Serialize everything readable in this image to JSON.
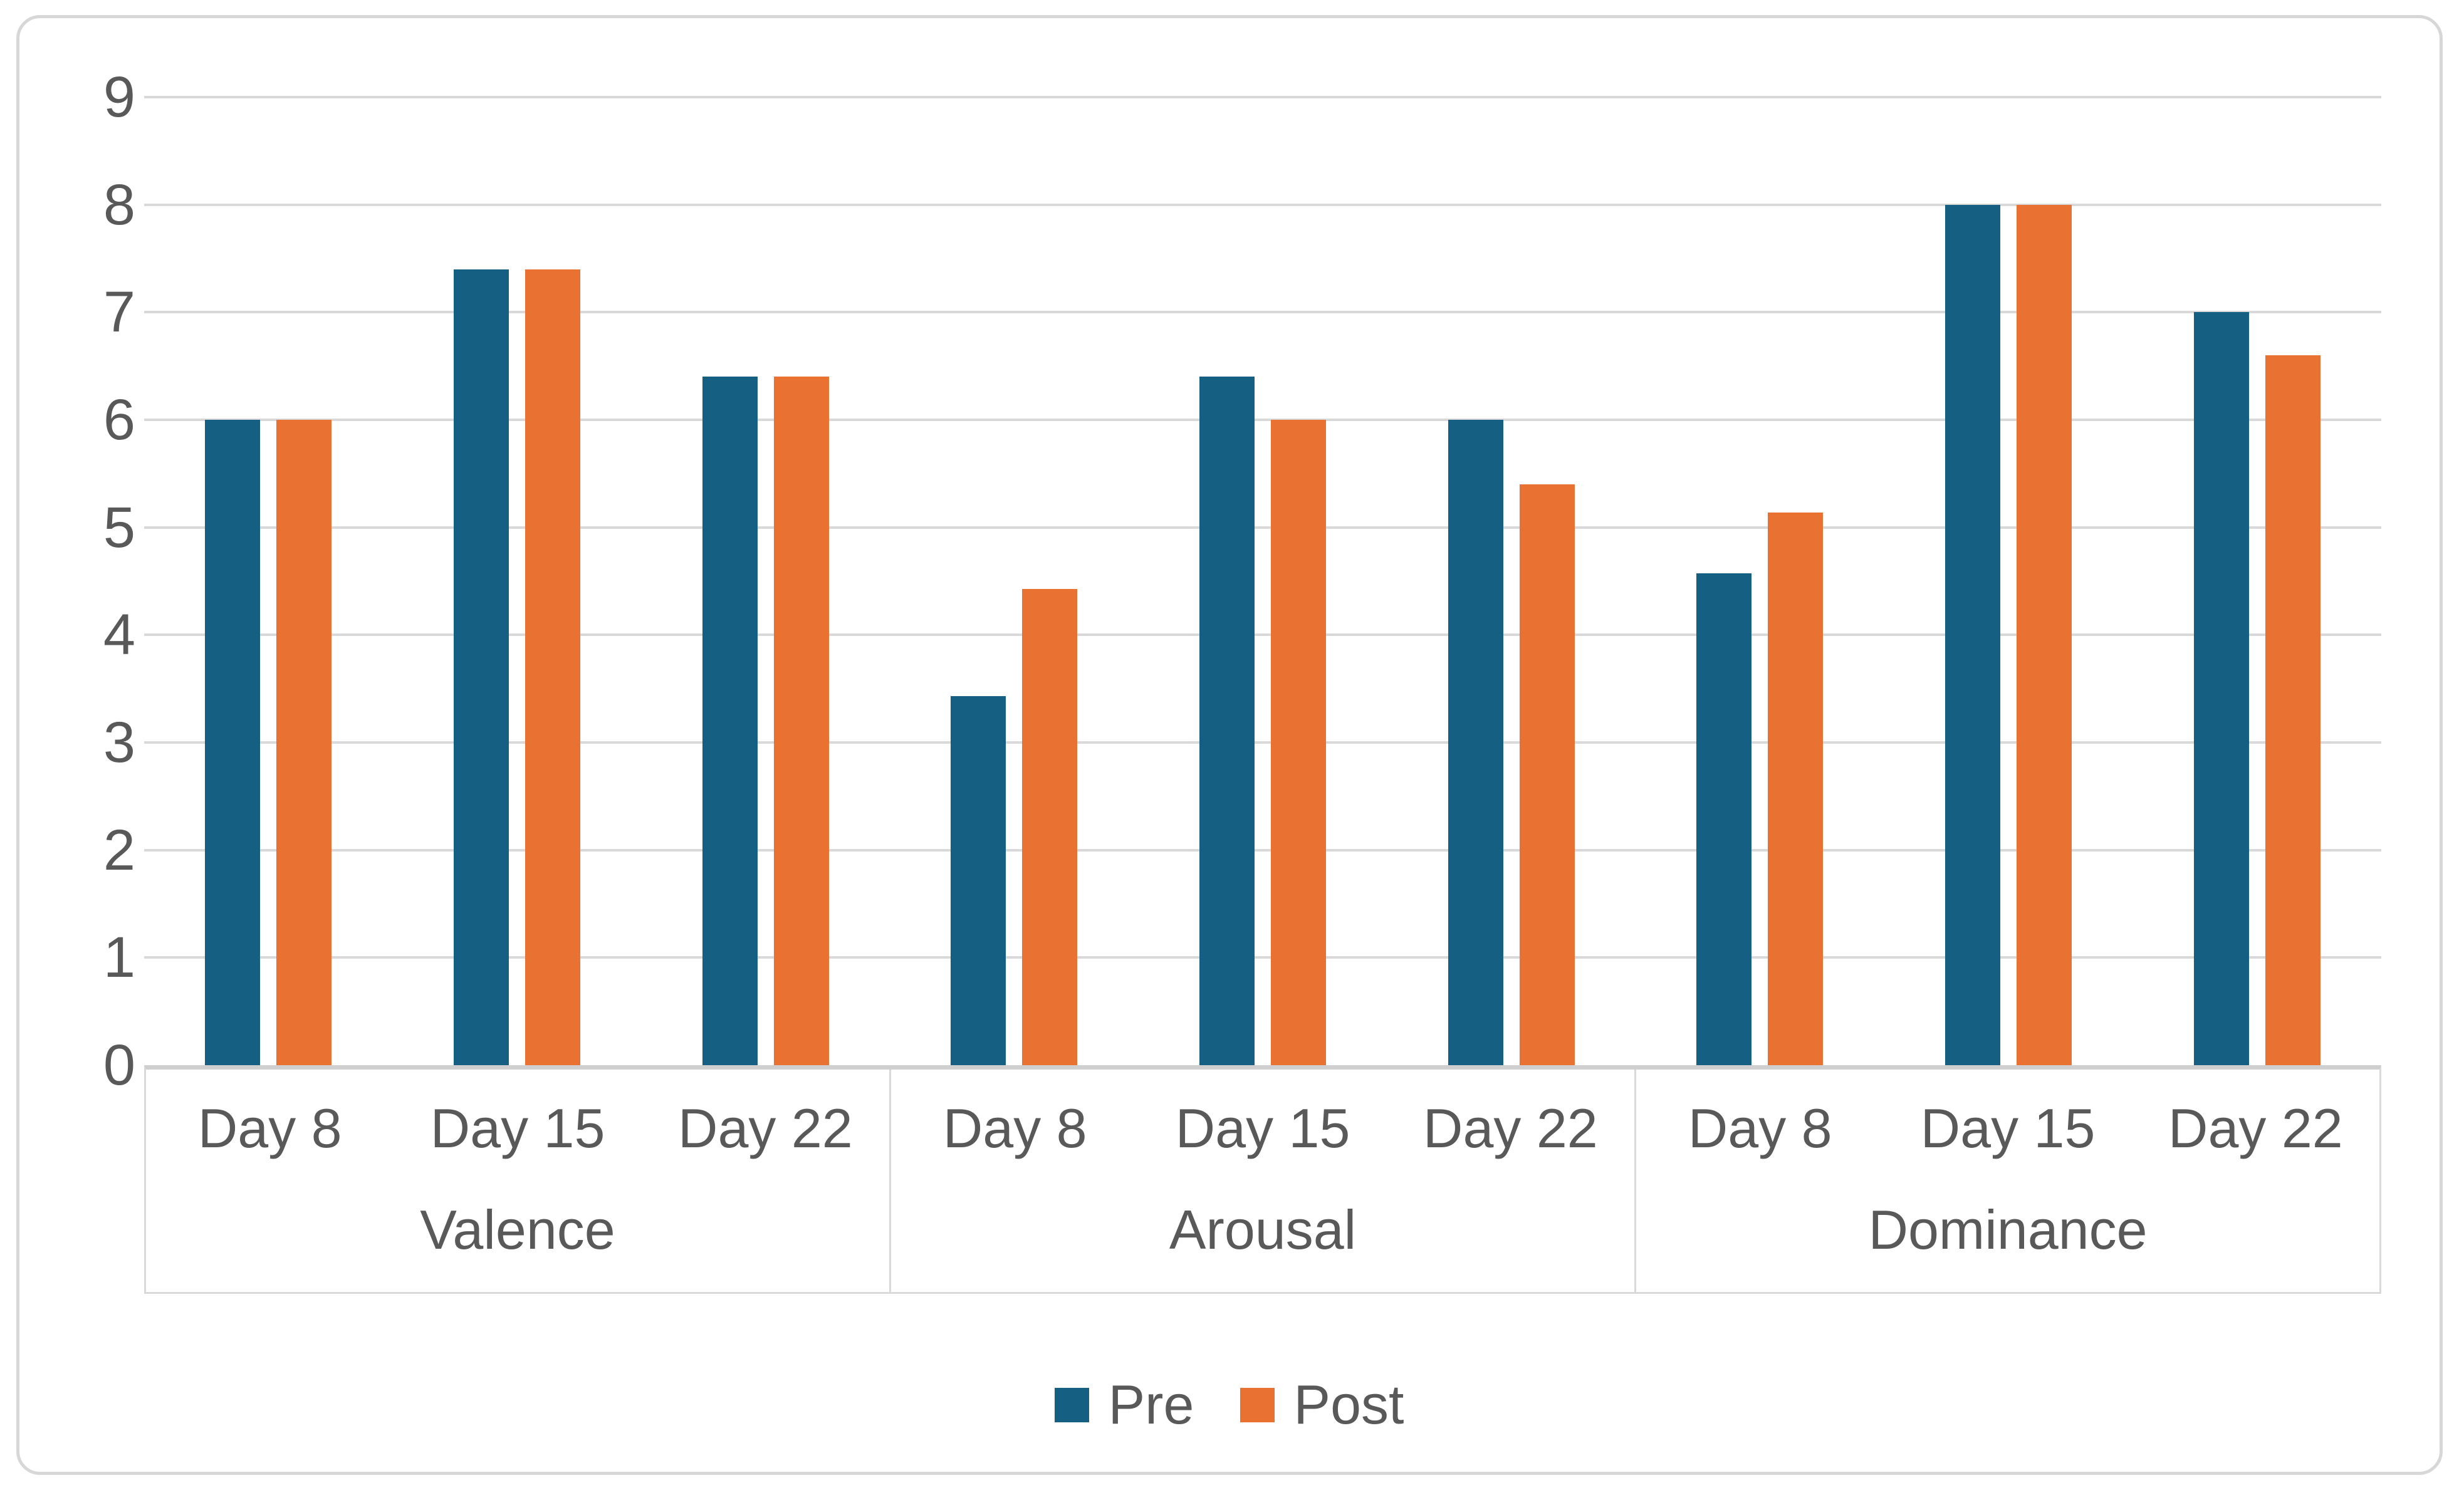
{
  "chart_data": {
    "type": "bar",
    "ylim": [
      0,
      9
    ],
    "yticks": [
      0,
      1,
      2,
      3,
      4,
      5,
      6,
      7,
      8,
      9
    ],
    "grid": true,
    "legend_position": "bottom",
    "groups": [
      {
        "label": "Valence",
        "days": [
          "Day 8",
          "Day 15",
          "Day 22"
        ]
      },
      {
        "label": "Arousal",
        "days": [
          "Day 8",
          "Day 15",
          "Day 22"
        ]
      },
      {
        "label": "Dominance",
        "days": [
          "Day 8",
          "Day 15",
          "Day 22"
        ]
      }
    ],
    "series": [
      {
        "name": "Pre",
        "color": "#156082",
        "values": [
          6.0,
          7.4,
          6.4,
          3.43,
          6.4,
          6.0,
          4.57,
          8.0,
          7.0
        ]
      },
      {
        "name": "Post",
        "color": "#E97132",
        "values": [
          6.0,
          7.4,
          6.4,
          4.43,
          6.0,
          5.4,
          5.14,
          8.0,
          6.6
        ]
      }
    ],
    "colors": {
      "gridline": "#d9d9d9",
      "baseline": "#cfcfcf",
      "axis_text": "#595959",
      "frame_border": "#d7d7d7"
    }
  }
}
